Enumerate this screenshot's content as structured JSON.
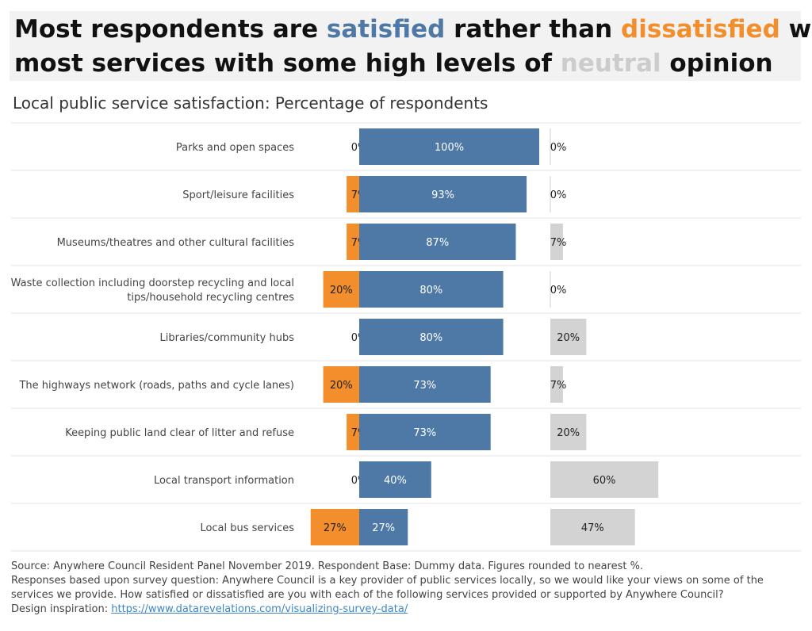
{
  "title": {
    "line1": [
      {
        "text": "Most respondents are ",
        "color": "#111111"
      },
      {
        "text": "satisfied",
        "color": "#4e79a7"
      },
      {
        "text": " rather than ",
        "color": "#111111"
      },
      {
        "text": "dissatisfied",
        "color": "#f28e2b"
      },
      {
        "text": " with",
        "color": "#111111"
      }
    ],
    "line2": [
      {
        "text": "most services with some high levels of ",
        "color": "#111111"
      },
      {
        "text": "neutral",
        "color": "#cccccc"
      },
      {
        "text": " opinion",
        "color": "#111111"
      }
    ]
  },
  "subtitle": "Local public service satisfaction: Percentage of respondents",
  "colors": {
    "satisfied": "#4e79a7",
    "dissatisfied": "#f28e2b",
    "neutral": "#d3d3d3",
    "gridline": "#e3e3e3"
  },
  "chart_data": {
    "type": "bar",
    "orientation": "horizontal",
    "layout": "diverging stacked bars with separate neutral column",
    "categories": [
      [
        "Parks and open spaces"
      ],
      [
        "Sport/leisure facilities"
      ],
      [
        "Museums/theatres and other cultural facilities"
      ],
      [
        "Waste collection including doorstep recycling and local",
        "tips/household recycling centres"
      ],
      [
        "Libraries/community hubs"
      ],
      [
        "The highways network (roads, paths and cycle lanes)"
      ],
      [
        "Keeping public land clear of litter and refuse"
      ],
      [
        "Local transport information"
      ],
      [
        "Local bus services"
      ]
    ],
    "series": [
      {
        "name": "dissatisfied",
        "values": [
          0,
          7,
          7,
          20,
          0,
          20,
          7,
          0,
          27
        ]
      },
      {
        "name": "satisfied",
        "values": [
          100,
          93,
          87,
          80,
          80,
          73,
          73,
          40,
          27
        ]
      },
      {
        "name": "neutral",
        "values": [
          0,
          0,
          7,
          0,
          20,
          7,
          20,
          60,
          47
        ]
      }
    ],
    "value_suffix": "%"
  },
  "footer": {
    "source": "Source: Anywhere Council Resident Panel November 2019.  Respondent Base: Dummy data. Figures rounded to nearest %.",
    "question": "Responses based upon survey question:  Anywhere Council is a key provider of public services locally, so we would like your views on some of the services we provide. How satisfied or dissatisfied are you with each of the following services provided or supported by Anywhere Council?",
    "inspiration_label": "Design inspiration: ",
    "inspiration_link": "https://www.datarevelations.com/visualizing-survey-data/"
  }
}
